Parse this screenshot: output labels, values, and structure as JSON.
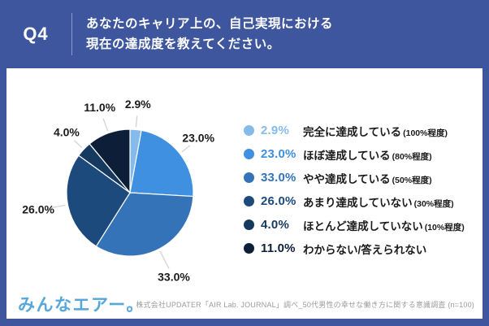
{
  "header": {
    "q_label": "Q4",
    "title_line1": "あなたのキャリア上の、自己実現における",
    "title_line2": "現在の達成度を教えてください。"
  },
  "chart_data": {
    "type": "pie",
    "start_angle_deg": 0,
    "direction": "clockwise",
    "title": "あなたのキャリア上の、自己実現における現在の達成度を教えてください。",
    "legend_position": "right",
    "slices": [
      {
        "display": "2.9%",
        "value": 2.9,
        "label": "完全に達成している",
        "note": "(100%程度)",
        "color": "#85bbeb"
      },
      {
        "display": "23.0%",
        "value": 23.0,
        "label": "ほぼ達成している",
        "note": "(80%程度)",
        "color": "#3f90e0"
      },
      {
        "display": "33.0%",
        "value": 33.0,
        "label": "やや達成している",
        "note": "(50%程度)",
        "color": "#3473b7"
      },
      {
        "display": "26.0%",
        "value": 26.0,
        "label": "あまり達成していない",
        "note": "(30%程度)",
        "color": "#1c4a7d"
      },
      {
        "display": "4.0%",
        "value": 4.0,
        "label": "ほとんど達成していない",
        "note": "(10%程度)",
        "color": "#16395f"
      },
      {
        "display": "11.0%",
        "value": 11.0,
        "label": "わからない/答えられない",
        "note": "",
        "color": "#0d1f38"
      }
    ]
  },
  "footer": {
    "logo_text": "みんなエアー。",
    "source_text": "株式会社UPDATER「AIR Lab. JOURNAL」調べ_50代男性の幸せな働き方に関する意識調査 (n=100)"
  }
}
